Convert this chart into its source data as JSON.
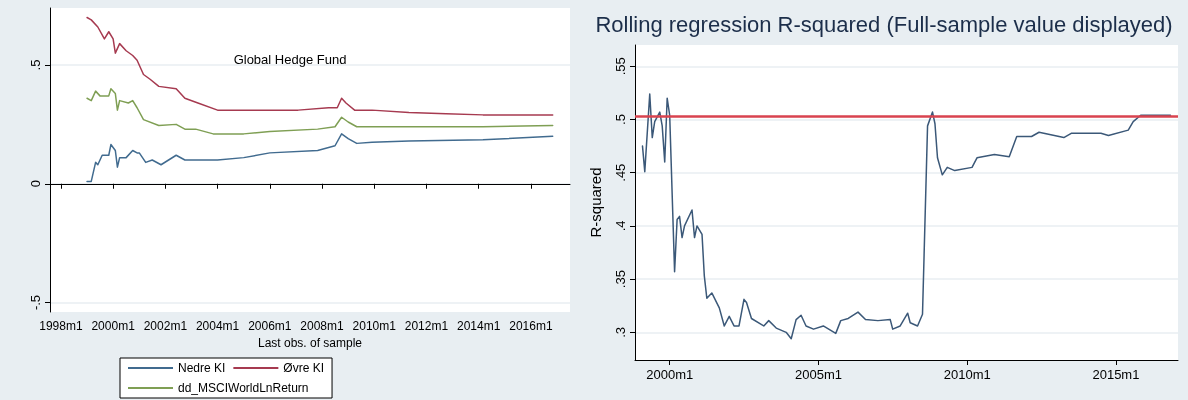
{
  "chart_data": [
    {
      "type": "line",
      "title": "Global Hedge Fund",
      "xlabel": "Last obs. of sample",
      "xlim": [
        "1997-08",
        "2017-07"
      ],
      "xticks": [
        {
          "value": "1998-01",
          "label": "1998m1"
        },
        {
          "value": "2000-01",
          "label": "2000m1"
        },
        {
          "value": "2002-01",
          "label": "2002m1"
        },
        {
          "value": "2004-01",
          "label": "2004m1"
        },
        {
          "value": "2006-01",
          "label": "2006m1"
        },
        {
          "value": "2008-01",
          "label": "2008m1"
        },
        {
          "value": "2010-01",
          "label": "2010m1"
        },
        {
          "value": "2012-01",
          "label": "2012m1"
        },
        {
          "value": "2014-01",
          "label": "2014m1"
        },
        {
          "value": "2016-01",
          "label": "2016m1"
        }
      ],
      "ylim": [
        -0.54,
        0.74
      ],
      "yticks": [
        {
          "value": -0.5,
          "label": "-.5"
        },
        {
          "value": 0,
          "label": "0"
        },
        {
          "value": 0.5,
          "label": ".5"
        }
      ],
      "grid": "y",
      "legend": "bottom",
      "marker": "none",
      "line_style": "solid",
      "series": [
        {
          "name": "Nedre KI",
          "color": "#416b8f",
          "x": [
            "1999-01",
            "1999-03",
            "1999-05",
            "1999-06",
            "1999-08",
            "1999-11",
            "1999-12",
            "2000-02",
            "2000-03",
            "2000-04",
            "2000-07",
            "2000-10",
            "2000-12",
            "2001-01",
            "2001-04",
            "2001-07",
            "2001-11",
            "2002-06",
            "2002-10",
            "2004-01",
            "2005-01",
            "2006-01",
            "2007-11",
            "2008-07",
            "2008-10",
            "2009-01",
            "2009-05",
            "2009-12",
            "2011-05",
            "2014-03",
            "2016-11"
          ],
          "values": [
            0.01,
            0.01,
            0.09,
            0.08,
            0.12,
            0.12,
            0.165,
            0.14,
            0.07,
            0.11,
            0.11,
            0.14,
            0.13,
            0.13,
            0.09,
            0.1,
            0.08,
            0.12,
            0.1,
            0.1,
            0.11,
            0.13,
            0.14,
            0.16,
            0.21,
            0.19,
            0.17,
            0.175,
            0.18,
            0.185,
            0.2
          ]
        },
        {
          "name": "Øvre KI",
          "color": "#a63a50",
          "x": [
            "1999-01",
            "1999-03",
            "1999-06",
            "1999-09",
            "1999-11",
            "2000-01",
            "2000-02",
            "2000-04",
            "2000-07",
            "2000-10",
            "2000-12",
            "2001-03",
            "2001-06",
            "2001-10",
            "2002-06",
            "2002-10",
            "2003-04",
            "2004-01",
            "2005-01",
            "2007-02",
            "2008-04",
            "2008-08",
            "2008-10",
            "2008-12",
            "2009-04",
            "2009-12",
            "2011-05",
            "2012-10",
            "2014-03",
            "2016-11"
          ],
          "values": [
            0.7,
            0.69,
            0.66,
            0.61,
            0.64,
            0.61,
            0.55,
            0.59,
            0.56,
            0.54,
            0.52,
            0.46,
            0.44,
            0.41,
            0.4,
            0.36,
            0.34,
            0.31,
            0.31,
            0.31,
            0.32,
            0.32,
            0.36,
            0.34,
            0.31,
            0.31,
            0.3,
            0.295,
            0.29,
            0.29
          ]
        },
        {
          "name": "dd_MSCIWorldLnReturn",
          "color": "#7f9f54",
          "x": [
            "1999-01",
            "1999-03",
            "1999-05",
            "1999-07",
            "1999-11",
            "1999-12",
            "2000-02",
            "2000-03",
            "2000-04",
            "2000-08",
            "2000-10",
            "2000-12",
            "2001-03",
            "2001-10",
            "2002-06",
            "2002-10",
            "2003-03",
            "2003-11",
            "2005-01",
            "2006-01",
            "2007-11",
            "2008-07",
            "2008-10",
            "2009-01",
            "2009-05",
            "2011-05",
            "2014-03",
            "2016-11"
          ],
          "values": [
            0.36,
            0.35,
            0.39,
            0.37,
            0.37,
            0.4,
            0.38,
            0.31,
            0.35,
            0.34,
            0.35,
            0.32,
            0.27,
            0.245,
            0.25,
            0.23,
            0.23,
            0.21,
            0.21,
            0.22,
            0.23,
            0.24,
            0.28,
            0.26,
            0.24,
            0.24,
            0.24,
            0.245
          ]
        }
      ]
    },
    {
      "type": "line",
      "title": "Rolling regression R-squared (Full-sample value displayed)",
      "ylabel": "R-squared",
      "xlim": [
        "1998-11",
        "2017-02"
      ],
      "xticks": [
        {
          "value": "2000-01",
          "label": "2000m1"
        },
        {
          "value": "2005-01",
          "label": "2005m1"
        },
        {
          "value": "2010-01",
          "label": "2010m1"
        },
        {
          "value": "2015-01",
          "label": "2015m1"
        }
      ],
      "ylim": [
        0.274,
        0.57
      ],
      "yticks": [
        {
          "value": 0.3,
          "label": ".3"
        },
        {
          "value": 0.35,
          "label": ".35"
        },
        {
          "value": 0.4,
          "label": ".4"
        },
        {
          "value": 0.45,
          "label": ".45"
        },
        {
          "value": 0.5,
          "label": ".5"
        },
        {
          "value": 0.55,
          "label": ".55"
        }
      ],
      "grid": "y",
      "marker": "none",
      "line_style": "solid",
      "ref_lines": [
        {
          "axis": "y",
          "value": 0.503,
          "color": "#d9434f"
        }
      ],
      "series": [
        {
          "color": "#3b5878",
          "x": [
            "1999-02",
            "1999-03",
            "1999-05",
            "1999-06",
            "1999-07",
            "1999-09",
            "1999-10",
            "1999-11",
            "1999-12",
            "2000-01",
            "2000-03",
            "2000-04",
            "2000-05",
            "2000-06",
            "2000-07",
            "2000-10",
            "2000-11",
            "2000-12",
            "2001-02",
            "2001-03",
            "2001-04",
            "2001-06",
            "2001-09",
            "2001-11",
            "2002-01",
            "2002-03",
            "2002-05",
            "2002-07",
            "2002-08",
            "2002-10",
            "2003-03",
            "2003-05",
            "2003-08",
            "2003-12",
            "2004-02",
            "2004-04",
            "2004-06",
            "2004-08",
            "2004-11",
            "2005-03",
            "2005-08",
            "2005-10",
            "2006-01",
            "2006-05",
            "2006-08",
            "2007-01",
            "2007-06",
            "2007-07",
            "2007-10",
            "2008-01",
            "2008-02",
            "2008-05",
            "2008-07",
            "2008-09",
            "2008-11",
            "2008-12",
            "2009-01",
            "2009-03",
            "2009-05",
            "2009-08",
            "2010-03",
            "2010-05",
            "2010-12",
            "2011-06",
            "2011-09",
            "2012-03",
            "2012-06",
            "2013-04",
            "2013-07",
            "2014-07",
            "2014-10",
            "2015-06",
            "2015-08",
            "2015-11",
            "2016-11"
          ],
          "values": [
            0.475,
            0.451,
            0.524,
            0.483,
            0.498,
            0.507,
            0.494,
            0.46,
            0.52,
            0.504,
            0.357,
            0.406,
            0.409,
            0.389,
            0.4,
            0.415,
            0.389,
            0.4,
            0.392,
            0.353,
            0.332,
            0.337,
            0.323,
            0.306,
            0.315,
            0.306,
            0.306,
            0.331,
            0.328,
            0.313,
            0.306,
            0.311,
            0.304,
            0.3,
            0.294,
            0.312,
            0.316,
            0.306,
            0.303,
            0.306,
            0.299,
            0.311,
            0.313,
            0.319,
            0.312,
            0.311,
            0.312,
            0.303,
            0.306,
            0.318,
            0.309,
            0.306,
            0.317,
            0.494,
            0.507,
            0.496,
            0.464,
            0.448,
            0.455,
            0.452,
            0.455,
            0.464,
            0.467,
            0.465,
            0.484,
            0.484,
            0.488,
            0.483,
            0.487,
            0.487,
            0.485,
            0.49,
            0.498,
            0.504,
            0.504
          ]
        }
      ]
    }
  ]
}
